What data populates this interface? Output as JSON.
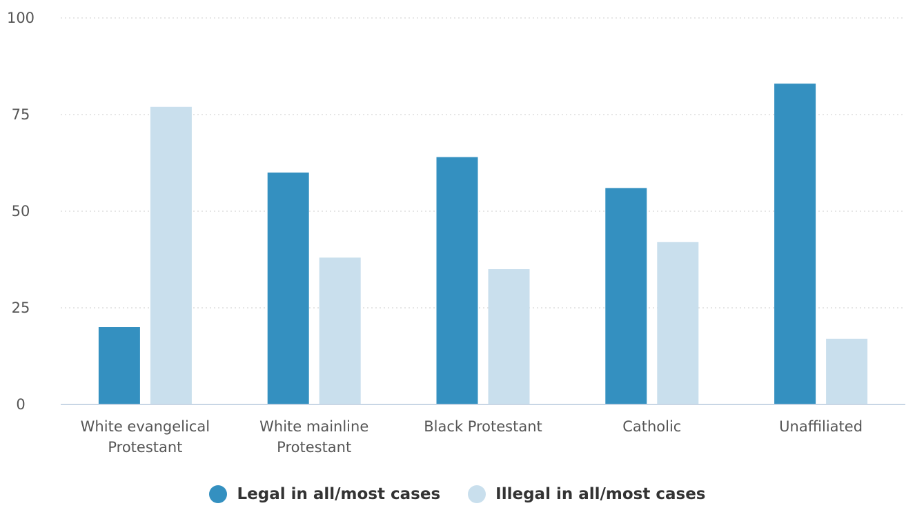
{
  "chart_data": {
    "type": "bar",
    "title": "",
    "xlabel": "",
    "ylabel": "",
    "categories": [
      [
        "White evangelical",
        "Protestant"
      ],
      [
        "White mainline",
        "Protestant"
      ],
      [
        "Black Protestant"
      ],
      [
        "Catholic"
      ],
      [
        "Unaffiliated"
      ]
    ],
    "series": [
      {
        "name": "Legal in all/most cases",
        "color": "#3490c0",
        "values": [
          20,
          60,
          64,
          56,
          83
        ]
      },
      {
        "name": "Illegal in all/most cases",
        "color": "#c9dfed",
        "values": [
          77,
          38,
          35,
          42,
          17
        ]
      }
    ],
    "ylim": [
      0,
      100
    ],
    "yticks": [
      "0",
      "25",
      "50",
      "75",
      "100"
    ],
    "grid": true,
    "legend_position": "bottom"
  }
}
